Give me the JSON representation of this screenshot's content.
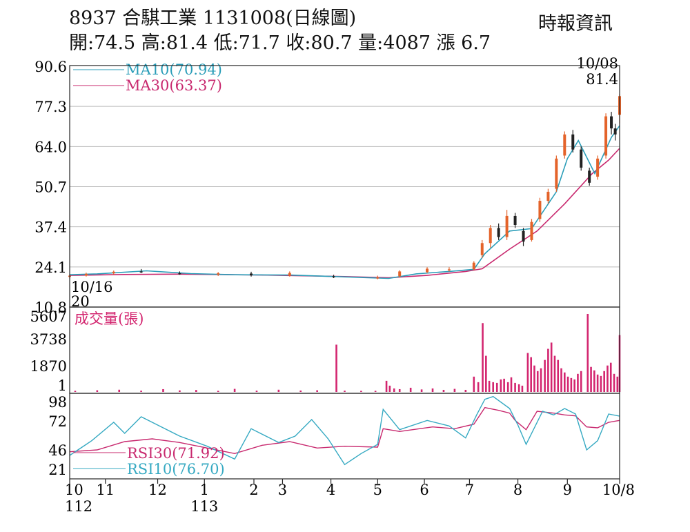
{
  "header": {
    "title": "8937 合騏工業 1131008(日線圖)",
    "ohlc": "開:74.5 高:81.4 低:71.7 收:80.7 量:4087 漲 6.7",
    "source": "時報資訊"
  },
  "colors": {
    "ma10": "#2a9db8",
    "ma30": "#c8286e",
    "volume": "#d3256f",
    "rsi10": "#35a9c2",
    "rsi30": "#c8286e",
    "candle_up": "#e4632a",
    "candle_down": "#222222",
    "grid": "#bbbbbb"
  },
  "chart_data": [
    {
      "type": "candlestick",
      "name": "price",
      "yticks": [
        "90.6",
        "77.3",
        "64.0",
        "50.7",
        "37.4",
        "24.1",
        "10.8"
      ],
      "ylim": [
        10.8,
        90.6
      ],
      "legend": [
        "MA10(70.94)",
        "MA30(63.37)"
      ],
      "annotations": {
        "last_date": "10/08",
        "last_high": "81.4",
        "start_date": "10/16",
        "start_low": "20"
      },
      "ma10": [
        [
          0,
          21.5
        ],
        [
          0.05,
          21.8
        ],
        [
          0.14,
          22.8
        ],
        [
          0.22,
          21.9
        ],
        [
          0.3,
          21.5
        ],
        [
          0.4,
          21.4
        ],
        [
          0.5,
          20.8
        ],
        [
          0.58,
          20.3
        ],
        [
          0.63,
          21.8
        ],
        [
          0.69,
          22.6
        ],
        [
          0.735,
          23.3
        ],
        [
          0.755,
          28.5
        ],
        [
          0.8,
          36
        ],
        [
          0.84,
          36.8
        ],
        [
          0.885,
          49
        ],
        [
          0.905,
          60
        ],
        [
          0.925,
          66
        ],
        [
          0.955,
          55
        ],
        [
          0.985,
          67
        ],
        [
          1.0,
          70.9
        ]
      ],
      "ma30": [
        [
          0,
          21.3
        ],
        [
          0.1,
          21.6
        ],
        [
          0.2,
          21.7
        ],
        [
          0.35,
          21.4
        ],
        [
          0.5,
          20.9
        ],
        [
          0.58,
          20.5
        ],
        [
          0.65,
          21.3
        ],
        [
          0.72,
          22.6
        ],
        [
          0.75,
          23.5
        ],
        [
          0.8,
          30
        ],
        [
          0.85,
          36
        ],
        [
          0.9,
          45
        ],
        [
          0.95,
          55
        ],
        [
          0.98,
          59.5
        ],
        [
          1.0,
          63.4
        ]
      ],
      "candles": [
        {
          "x": 0.0,
          "o": 20.8,
          "h": 21.6,
          "l": 20.2,
          "c": 21.2
        },
        {
          "x": 0.03,
          "o": 21.2,
          "h": 22.2,
          "l": 20.9,
          "c": 21.8
        },
        {
          "x": 0.08,
          "o": 22.0,
          "h": 22.9,
          "l": 21.5,
          "c": 22.5
        },
        {
          "x": 0.13,
          "o": 22.6,
          "h": 23.4,
          "l": 22.1,
          "c": 22.3
        },
        {
          "x": 0.2,
          "o": 22.0,
          "h": 22.6,
          "l": 21.5,
          "c": 21.7
        },
        {
          "x": 0.27,
          "o": 21.6,
          "h": 22.4,
          "l": 21.1,
          "c": 22.0
        },
        {
          "x": 0.33,
          "o": 21.9,
          "h": 22.5,
          "l": 20.9,
          "c": 21.3
        },
        {
          "x": 0.4,
          "o": 21.2,
          "h": 22.6,
          "l": 20.9,
          "c": 22.1
        },
        {
          "x": 0.48,
          "o": 21.0,
          "h": 21.5,
          "l": 20.4,
          "c": 20.8
        },
        {
          "x": 0.56,
          "o": 20.4,
          "h": 21.2,
          "l": 20.0,
          "c": 20.6
        },
        {
          "x": 0.6,
          "o": 21.0,
          "h": 23.0,
          "l": 20.6,
          "c": 22.6
        },
        {
          "x": 0.65,
          "o": 22.4,
          "h": 24.0,
          "l": 22.0,
          "c": 23.5
        },
        {
          "x": 0.69,
          "o": 23.0,
          "h": 24.0,
          "l": 22.6,
          "c": 23.3
        },
        {
          "x": 0.735,
          "o": 23.3,
          "h": 26.0,
          "l": 23.0,
          "c": 25.5
        },
        {
          "x": 0.75,
          "o": 28.0,
          "h": 33.0,
          "l": 27.0,
          "c": 32.0
        },
        {
          "x": 0.765,
          "o": 32.0,
          "h": 38.0,
          "l": 30.5,
          "c": 37.0
        },
        {
          "x": 0.78,
          "o": 37.0,
          "h": 38.5,
          "l": 33.0,
          "c": 34.0
        },
        {
          "x": 0.795,
          "o": 34.0,
          "h": 43.0,
          "l": 33.0,
          "c": 41.0
        },
        {
          "x": 0.81,
          "o": 41.0,
          "h": 42.0,
          "l": 37.0,
          "c": 38.0
        },
        {
          "x": 0.825,
          "o": 36.0,
          "h": 37.0,
          "l": 31.0,
          "c": 32.5
        },
        {
          "x": 0.84,
          "o": 33.0,
          "h": 40.0,
          "l": 32.5,
          "c": 39.0
        },
        {
          "x": 0.855,
          "o": 40.0,
          "h": 47.0,
          "l": 39.0,
          "c": 46.0
        },
        {
          "x": 0.87,
          "o": 46.0,
          "h": 50.0,
          "l": 45.0,
          "c": 49.0
        },
        {
          "x": 0.885,
          "o": 50.0,
          "h": 61.0,
          "l": 49.0,
          "c": 60.0
        },
        {
          "x": 0.9,
          "o": 61.0,
          "h": 69.0,
          "l": 60.0,
          "c": 68.0
        },
        {
          "x": 0.915,
          "o": 68.0,
          "h": 69.5,
          "l": 62.0,
          "c": 63.0
        },
        {
          "x": 0.93,
          "o": 63.0,
          "h": 64.0,
          "l": 56.0,
          "c": 57.0
        },
        {
          "x": 0.945,
          "o": 56.0,
          "h": 57.0,
          "l": 51.0,
          "c": 52.0
        },
        {
          "x": 0.96,
          "o": 54.0,
          "h": 61.0,
          "l": 53.0,
          "c": 60.0
        },
        {
          "x": 0.975,
          "o": 61.0,
          "h": 75.0,
          "l": 60.0,
          "c": 74.0
        },
        {
          "x": 0.985,
          "o": 74.0,
          "h": 75.5,
          "l": 68.0,
          "c": 70.0
        },
        {
          "x": 0.992,
          "o": 70.0,
          "h": 71.5,
          "l": 66.0,
          "c": 68.0
        },
        {
          "x": 1.0,
          "o": 74.5,
          "h": 81.4,
          "l": 71.7,
          "c": 80.7
        }
      ]
    },
    {
      "type": "bar",
      "name": "volume",
      "legend": "成交量(張)",
      "yticks": [
        "5607",
        "3738",
        "1870",
        "1"
      ],
      "ylim": [
        0,
        5607
      ],
      "bars": [
        [
          0.01,
          80
        ],
        [
          0.05,
          120
        ],
        [
          0.09,
          160
        ],
        [
          0.13,
          90
        ],
        [
          0.17,
          200
        ],
        [
          0.2,
          110
        ],
        [
          0.23,
          140
        ],
        [
          0.27,
          80
        ],
        [
          0.3,
          220
        ],
        [
          0.34,
          90
        ],
        [
          0.38,
          160
        ],
        [
          0.42,
          100
        ],
        [
          0.45,
          120
        ],
        [
          0.485,
          3400
        ],
        [
          0.5,
          90
        ],
        [
          0.53,
          80
        ],
        [
          0.556,
          80
        ],
        [
          0.576,
          800
        ],
        [
          0.582,
          450
        ],
        [
          0.59,
          250
        ],
        [
          0.6,
          200
        ],
        [
          0.62,
          300
        ],
        [
          0.64,
          180
        ],
        [
          0.66,
          250
        ],
        [
          0.68,
          150
        ],
        [
          0.7,
          220
        ],
        [
          0.72,
          150
        ],
        [
          0.735,
          1100
        ],
        [
          0.743,
          700
        ],
        [
          0.751,
          4950
        ],
        [
          0.757,
          2600
        ],
        [
          0.763,
          800
        ],
        [
          0.77,
          700
        ],
        [
          0.777,
          650
        ],
        [
          0.784,
          900
        ],
        [
          0.79,
          950
        ],
        [
          0.797,
          700
        ],
        [
          0.803,
          1050
        ],
        [
          0.81,
          650
        ],
        [
          0.817,
          550
        ],
        [
          0.823,
          450
        ],
        [
          0.833,
          2800
        ],
        [
          0.839,
          2500
        ],
        [
          0.845,
          1900
        ],
        [
          0.851,
          1500
        ],
        [
          0.857,
          1700
        ],
        [
          0.864,
          2300
        ],
        [
          0.87,
          3100
        ],
        [
          0.876,
          3550
        ],
        [
          0.882,
          2600
        ],
        [
          0.888,
          2300
        ],
        [
          0.894,
          1700
        ],
        [
          0.9,
          1400
        ],
        [
          0.906,
          1100
        ],
        [
          0.912,
          1000
        ],
        [
          0.918,
          900
        ],
        [
          0.924,
          1300
        ],
        [
          0.93,
          1500
        ],
        [
          0.942,
          5607
        ],
        [
          0.948,
          1800
        ],
        [
          0.954,
          1550
        ],
        [
          0.96,
          1250
        ],
        [
          0.966,
          1150
        ],
        [
          0.972,
          1500
        ],
        [
          0.978,
          1900
        ],
        [
          0.984,
          2100
        ],
        [
          0.99,
          1300
        ],
        [
          0.996,
          1100
        ],
        [
          1.0,
          4087
        ]
      ]
    },
    {
      "type": "line",
      "name": "rsi",
      "yticks": [
        "98",
        "72",
        "46",
        "21"
      ],
      "ylim": [
        10,
        100
      ],
      "legend": [
        "RSI30(71.92)",
        "RSI10(76.70)"
      ],
      "rsi30": [
        [
          0,
          38
        ],
        [
          0.05,
          40
        ],
        [
          0.1,
          49
        ],
        [
          0.15,
          52
        ],
        [
          0.2,
          48
        ],
        [
          0.25,
          42
        ],
        [
          0.3,
          36
        ],
        [
          0.35,
          45
        ],
        [
          0.4,
          49
        ],
        [
          0.45,
          42
        ],
        [
          0.5,
          44
        ],
        [
          0.56,
          43
        ],
        [
          0.57,
          63
        ],
        [
          0.6,
          60
        ],
        [
          0.66,
          65
        ],
        [
          0.7,
          63
        ],
        [
          0.735,
          68
        ],
        [
          0.755,
          86
        ],
        [
          0.78,
          83
        ],
        [
          0.8,
          80
        ],
        [
          0.81,
          72
        ],
        [
          0.83,
          62
        ],
        [
          0.85,
          82
        ],
        [
          0.88,
          80
        ],
        [
          0.9,
          78
        ],
        [
          0.92,
          77
        ],
        [
          0.94,
          65
        ],
        [
          0.96,
          64
        ],
        [
          0.98,
          70
        ],
        [
          1.0,
          72
        ]
      ],
      "rsi10": [
        [
          0,
          34
        ],
        [
          0.04,
          50
        ],
        [
          0.08,
          70
        ],
        [
          0.1,
          58
        ],
        [
          0.13,
          76
        ],
        [
          0.16,
          67
        ],
        [
          0.2,
          55
        ],
        [
          0.25,
          44
        ],
        [
          0.3,
          30
        ],
        [
          0.33,
          63
        ],
        [
          0.38,
          48
        ],
        [
          0.41,
          55
        ],
        [
          0.44,
          73
        ],
        [
          0.47,
          52
        ],
        [
          0.5,
          24
        ],
        [
          0.53,
          36
        ],
        [
          0.56,
          46
        ],
        [
          0.57,
          84
        ],
        [
          0.6,
          62
        ],
        [
          0.65,
          72
        ],
        [
          0.69,
          66
        ],
        [
          0.72,
          53
        ],
        [
          0.74,
          78
        ],
        [
          0.755,
          95
        ],
        [
          0.77,
          98
        ],
        [
          0.8,
          85
        ],
        [
          0.815,
          67
        ],
        [
          0.83,
          46
        ],
        [
          0.86,
          82
        ],
        [
          0.88,
          78
        ],
        [
          0.9,
          85
        ],
        [
          0.92,
          79
        ],
        [
          0.94,
          40
        ],
        [
          0.96,
          50
        ],
        [
          0.98,
          79
        ],
        [
          1.0,
          76.7
        ]
      ]
    },
    {
      "type": "axis",
      "name": "time",
      "ticks": [
        {
          "x": 0.0,
          "label": "10",
          "sub": "112"
        },
        {
          "x": 0.065,
          "label": "11"
        },
        {
          "x": 0.16,
          "label": "12"
        },
        {
          "x": 0.245,
          "label": "1",
          "sub": "113"
        },
        {
          "x": 0.335,
          "label": "2"
        },
        {
          "x": 0.387,
          "label": "3"
        },
        {
          "x": 0.475,
          "label": "4"
        },
        {
          "x": 0.56,
          "label": "5"
        },
        {
          "x": 0.645,
          "label": "6"
        },
        {
          "x": 0.727,
          "label": "7"
        },
        {
          "x": 0.815,
          "label": "8"
        },
        {
          "x": 0.905,
          "label": "9"
        },
        {
          "x": 1.0,
          "label": "10/8"
        }
      ]
    }
  ]
}
